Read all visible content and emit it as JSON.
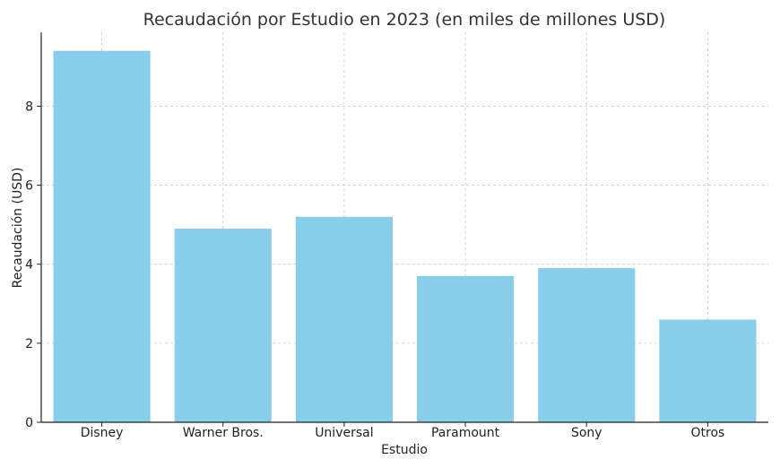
{
  "chart_data": {
    "type": "bar",
    "title": "Recaudación por Estudio en 2023 (en miles de millones USD)",
    "xlabel": "Estudio",
    "ylabel": "Recaudación (USD)",
    "categories": [
      "Disney",
      "Warner Bros.",
      "Universal",
      "Paramount",
      "Sony",
      "Otros"
    ],
    "values": [
      9.4,
      4.9,
      5.2,
      3.7,
      3.9,
      2.6
    ],
    "ylim": [
      0,
      9.87
    ],
    "yticks": [
      0,
      2,
      4,
      6,
      8
    ],
    "grid": true,
    "bar_color": "#87CEEB"
  }
}
